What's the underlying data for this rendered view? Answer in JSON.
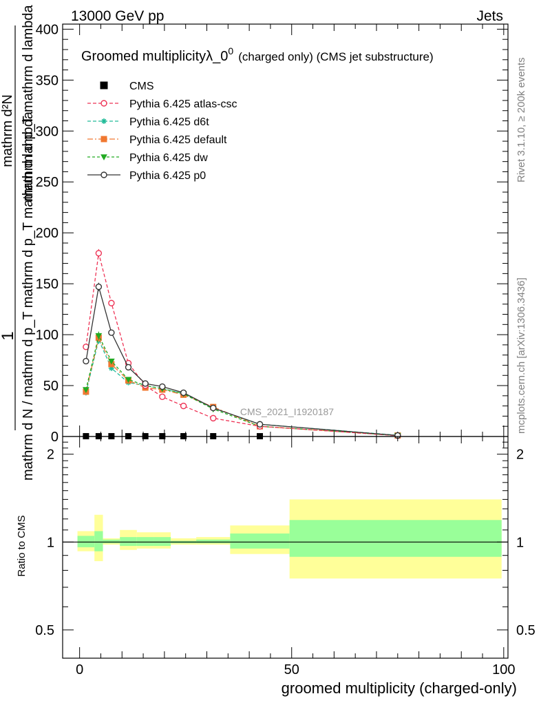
{
  "header": {
    "left": "13000 GeV pp",
    "right": "Jets"
  },
  "side_labels": {
    "top": "Rivet 3.1.10, ≥ 200k events",
    "bottom": "mcplots.cern.ch [arXiv:1306.3436]"
  },
  "watermark": "CMS_2021_I1920187",
  "chart_data": [
    {
      "type": "line",
      "panel": "main",
      "title": "Groomed multiplicityλ_0",
      "title_sup": "0",
      "subtitle": "(charged only) (CMS jet substructure)",
      "ylabel_frac_top": "1",
      "ylabel_frac_bottom": "mathrm d N / mathrm d p_T mathrm d p_T mathrm d lambda",
      "ylabel_top_lines": [
        "mathrm d²N",
        "mathrm d p_T mathrm d lambda"
      ],
      "ylabel_bottom_text": "mathrm d N / mathrm d p_T mathrm d p_T mathrm d lambda",
      "xlim": [
        -4,
        101
      ],
      "ylim": [
        0,
        405
      ],
      "yticks": [
        0,
        50,
        100,
        150,
        200,
        250,
        300,
        350,
        400
      ],
      "yticklabels": [
        "0",
        "50",
        "100",
        "150",
        "200",
        "250",
        "300",
        "350",
        "400"
      ],
      "legend_position": "top-left",
      "series": [
        {
          "name": "CMS",
          "color": "#000000",
          "marker": "square",
          "x": [
            1.5,
            4.5,
            7.5,
            11.5,
            15.5,
            19.5,
            24.5,
            31.5,
            42.5
          ],
          "y": [
            0.3,
            0.3,
            0.3,
            0.3,
            0.3,
            0.3,
            0.3,
            0.3,
            0.3
          ],
          "err": [
            0,
            0,
            0,
            0,
            0,
            0,
            0,
            0,
            0
          ]
        },
        {
          "name": "Pythia 6.425 atlas-csc",
          "color": "#ee3355",
          "marker": "circle-open",
          "dash": "5,3",
          "x": [
            1.5,
            4.5,
            7.5,
            11.5,
            15.5,
            19.5,
            24.5,
            31.5,
            42.5,
            75
          ],
          "y": [
            88,
            180,
            131,
            72,
            50,
            39,
            30,
            18,
            10,
            0.8
          ],
          "err": [
            1.5,
            4,
            2,
            1.5,
            1,
            1,
            1,
            1,
            0.5,
            0.2
          ]
        },
        {
          "name": "Pythia 6.425 d6t",
          "color": "#22bb99",
          "marker": "star",
          "dash": "5,3",
          "x": [
            1.5,
            4.5,
            7.5,
            11.5,
            15.5,
            19.5,
            24.5,
            31.5,
            42.5,
            75
          ],
          "y": [
            43,
            95,
            67,
            53,
            50,
            47,
            42,
            28,
            12,
            1.2
          ],
          "err": [
            1.5,
            4,
            2,
            1.5,
            1,
            1,
            1,
            1,
            0.5,
            0.2
          ]
        },
        {
          "name": "Pythia 6.425 default",
          "color": "#f07830",
          "marker": "square",
          "dash": "8,3,2,3",
          "x": [
            1.5,
            4.5,
            7.5,
            11.5,
            15.5,
            19.5,
            24.5,
            31.5,
            42.5,
            75
          ],
          "y": [
            44,
            97,
            71,
            55,
            48,
            46,
            41,
            29,
            10,
            1.0
          ],
          "err": [
            1.5,
            4,
            2,
            1.5,
            1,
            1,
            1,
            1,
            0.5,
            0.2
          ]
        },
        {
          "name": "Pythia 6.425 dw",
          "color": "#22aa22",
          "marker": "triangle-down",
          "dash": "4,3",
          "x": [
            1.5,
            4.5,
            7.5,
            11.5,
            15.5,
            19.5,
            24.5,
            31.5,
            42.5,
            75
          ],
          "y": [
            46,
            99,
            74,
            56,
            50,
            47,
            42,
            27,
            10,
            1.0
          ],
          "err": [
            1.5,
            4,
            2,
            1.5,
            1,
            1,
            1,
            1,
            0.5,
            0.2
          ]
        },
        {
          "name": "Pythia 6.425 p0",
          "color": "#333333",
          "marker": "circle-open",
          "dash": "",
          "x": [
            1.5,
            4.5,
            7.5,
            11.5,
            15.5,
            19.5,
            24.5,
            31.5,
            42.5,
            75
          ],
          "y": [
            74,
            147,
            102,
            68,
            52,
            49,
            43,
            28,
            12,
            1.0
          ],
          "err": [
            1.5,
            4,
            2,
            1.5,
            1,
            1,
            1,
            1,
            0.5,
            0.2
          ]
        }
      ]
    },
    {
      "type": "area",
      "panel": "ratio",
      "ylabel": "Ratio to CMS",
      "xlabel": "groomed multiplicity (charged-only)",
      "xlim": [
        -4,
        101
      ],
      "ylim": [
        0.4,
        2.3
      ],
      "log_y": true,
      "xticks": [
        0,
        50,
        100
      ],
      "xticklabels": [
        "0",
        "50",
        "100"
      ],
      "yticks": [
        0.5,
        1,
        2
      ],
      "yticklabels": [
        "0.5",
        "1",
        "2"
      ],
      "reference_line": 1,
      "bands": [
        {
          "x0": -0.5,
          "x1": 3.5,
          "stat": [
            0.96,
            1.05
          ],
          "total": [
            0.93,
            1.09
          ],
          "stat_color": "#99ff99",
          "total_color": "#ffff99"
        },
        {
          "x0": 3.5,
          "x1": 5.5,
          "stat": [
            0.93,
            1.09
          ],
          "total": [
            0.86,
            1.24
          ],
          "stat_color": "#99ff99",
          "total_color": "#ffff99"
        },
        {
          "x0": 5.5,
          "x1": 9.5,
          "stat": [
            0.99,
            1.02
          ],
          "total": [
            0.98,
            1.03
          ],
          "stat_color": "#99ff99",
          "total_color": "#ffff99"
        },
        {
          "x0": 9.5,
          "x1": 13.5,
          "stat": [
            0.97,
            1.04
          ],
          "total": [
            0.94,
            1.1
          ],
          "stat_color": "#99ff99",
          "total_color": "#ffff99"
        },
        {
          "x0": 13.5,
          "x1": 17.5,
          "stat": [
            0.97,
            1.04
          ],
          "total": [
            0.95,
            1.08
          ],
          "stat_color": "#99ff99",
          "total_color": "#ffff99"
        },
        {
          "x0": 17.5,
          "x1": 21.5,
          "stat": [
            0.97,
            1.04
          ],
          "total": [
            0.95,
            1.08
          ],
          "stat_color": "#99ff99",
          "total_color": "#ffff99"
        },
        {
          "x0": 21.5,
          "x1": 27.5,
          "stat": [
            0.99,
            1.01
          ],
          "total": [
            0.98,
            1.03
          ],
          "stat_color": "#99ff99",
          "total_color": "#ffff99"
        },
        {
          "x0": 27.5,
          "x1": 35.5,
          "stat": [
            0.99,
            1.02
          ],
          "total": [
            0.98,
            1.04
          ],
          "stat_color": "#99ff99",
          "total_color": "#ffff99"
        },
        {
          "x0": 35.5,
          "x1": 49.5,
          "stat": [
            0.95,
            1.07
          ],
          "total": [
            0.91,
            1.14
          ],
          "stat_color": "#99ff99",
          "total_color": "#ffff99"
        },
        {
          "x0": 49.5,
          "x1": 99.5,
          "stat": [
            0.89,
            1.19
          ],
          "total": [
            0.75,
            1.4
          ],
          "stat_color": "#99ff99",
          "total_color": "#ffff99"
        }
      ]
    }
  ]
}
